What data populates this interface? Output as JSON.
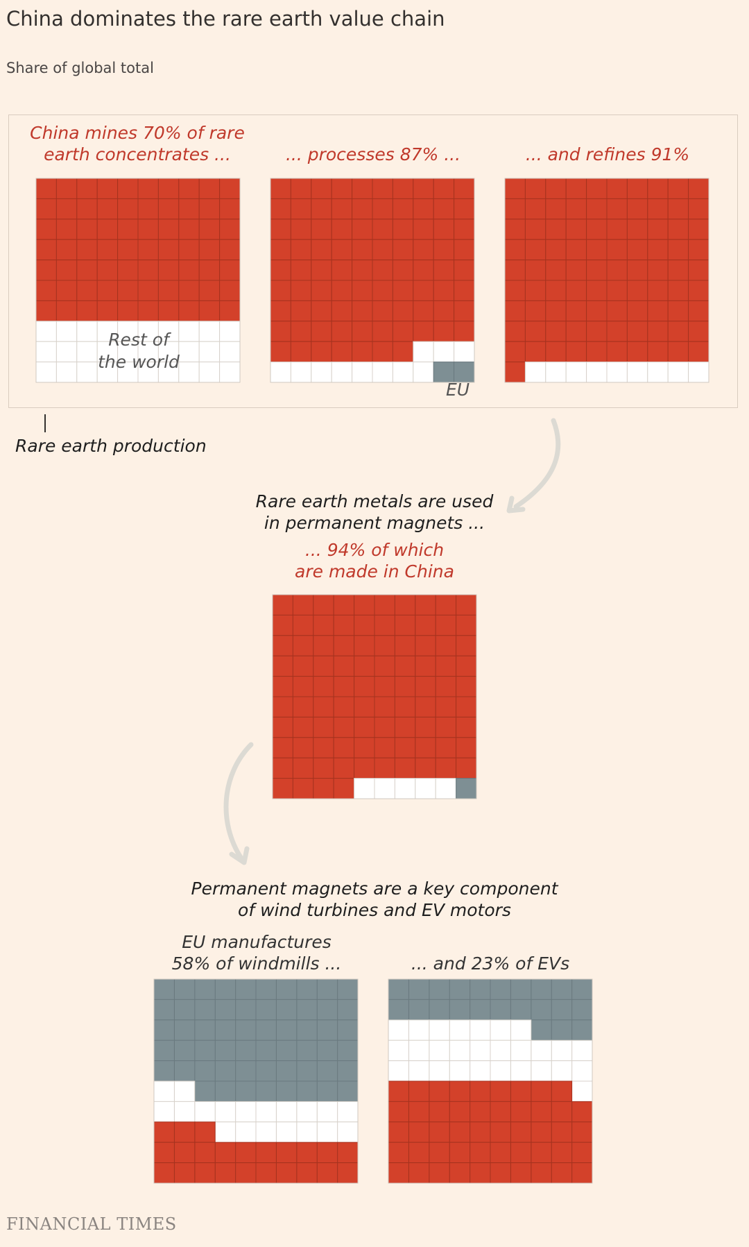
{
  "title": "China dominates the rare earth value chain",
  "subtitle": "Share of global total",
  "colors": {
    "china": "#D3412A",
    "rest_of_world": "#FFFFFF",
    "eu": "#7E8F94",
    "grid_line": "#A6321F",
    "background": "#FDF1E5"
  },
  "production": {
    "caption_mining": "China mines 70% of rare\nearth concentrates ...",
    "caption_processing": "... processes 87% ...",
    "caption_refining": "... and refines 91%",
    "rest_label": "Rest of\nthe world",
    "eu_label": "EU",
    "section_label": "Rare earth production"
  },
  "magnets": {
    "intro": "Rare earth metals are used\nin permanent magnets ...",
    "caption": "... 94% of which\nare made in China"
  },
  "components": {
    "intro": "Permanent magnets are a key component\nof wind turbines and EV motors",
    "caption_windmills": "EU manufactures\n58% of windmills ...",
    "caption_evs": "... and 23% of EVs"
  },
  "chart_data": [
    {
      "type": "waffle",
      "name": "mining",
      "grid": "10x10",
      "values": [
        {
          "category": "China",
          "value": 70
        },
        {
          "category": "Rest of the world",
          "value": 30
        }
      ]
    },
    {
      "type": "waffle",
      "name": "processing",
      "grid": "10x10",
      "values": [
        {
          "category": "China",
          "value": 87
        },
        {
          "category": "Rest of the world",
          "value": 11
        },
        {
          "category": "EU",
          "value": 2
        }
      ]
    },
    {
      "type": "waffle",
      "name": "refining",
      "grid": "10x10",
      "values": [
        {
          "category": "China",
          "value": 91
        },
        {
          "category": "Rest of the world",
          "value": 9
        }
      ]
    },
    {
      "type": "waffle",
      "name": "magnets",
      "grid": "10x10",
      "values": [
        {
          "category": "China",
          "value": 94
        },
        {
          "category": "Rest of the world",
          "value": 5
        },
        {
          "category": "EU",
          "value": 1
        }
      ]
    },
    {
      "type": "waffle",
      "name": "windmills",
      "grid": "10x10",
      "values": [
        {
          "category": "EU",
          "value": 58
        },
        {
          "category": "Rest of the world",
          "value": 19
        },
        {
          "category": "China",
          "value": 23
        }
      ]
    },
    {
      "type": "waffle",
      "name": "evs",
      "grid": "10x10",
      "values": [
        {
          "category": "EU",
          "value": 23
        },
        {
          "category": "Rest of the world",
          "value": 28
        },
        {
          "category": "China",
          "value": 49
        }
      ]
    }
  ],
  "footer": {
    "logo": "FINANCIAL TIMES"
  }
}
